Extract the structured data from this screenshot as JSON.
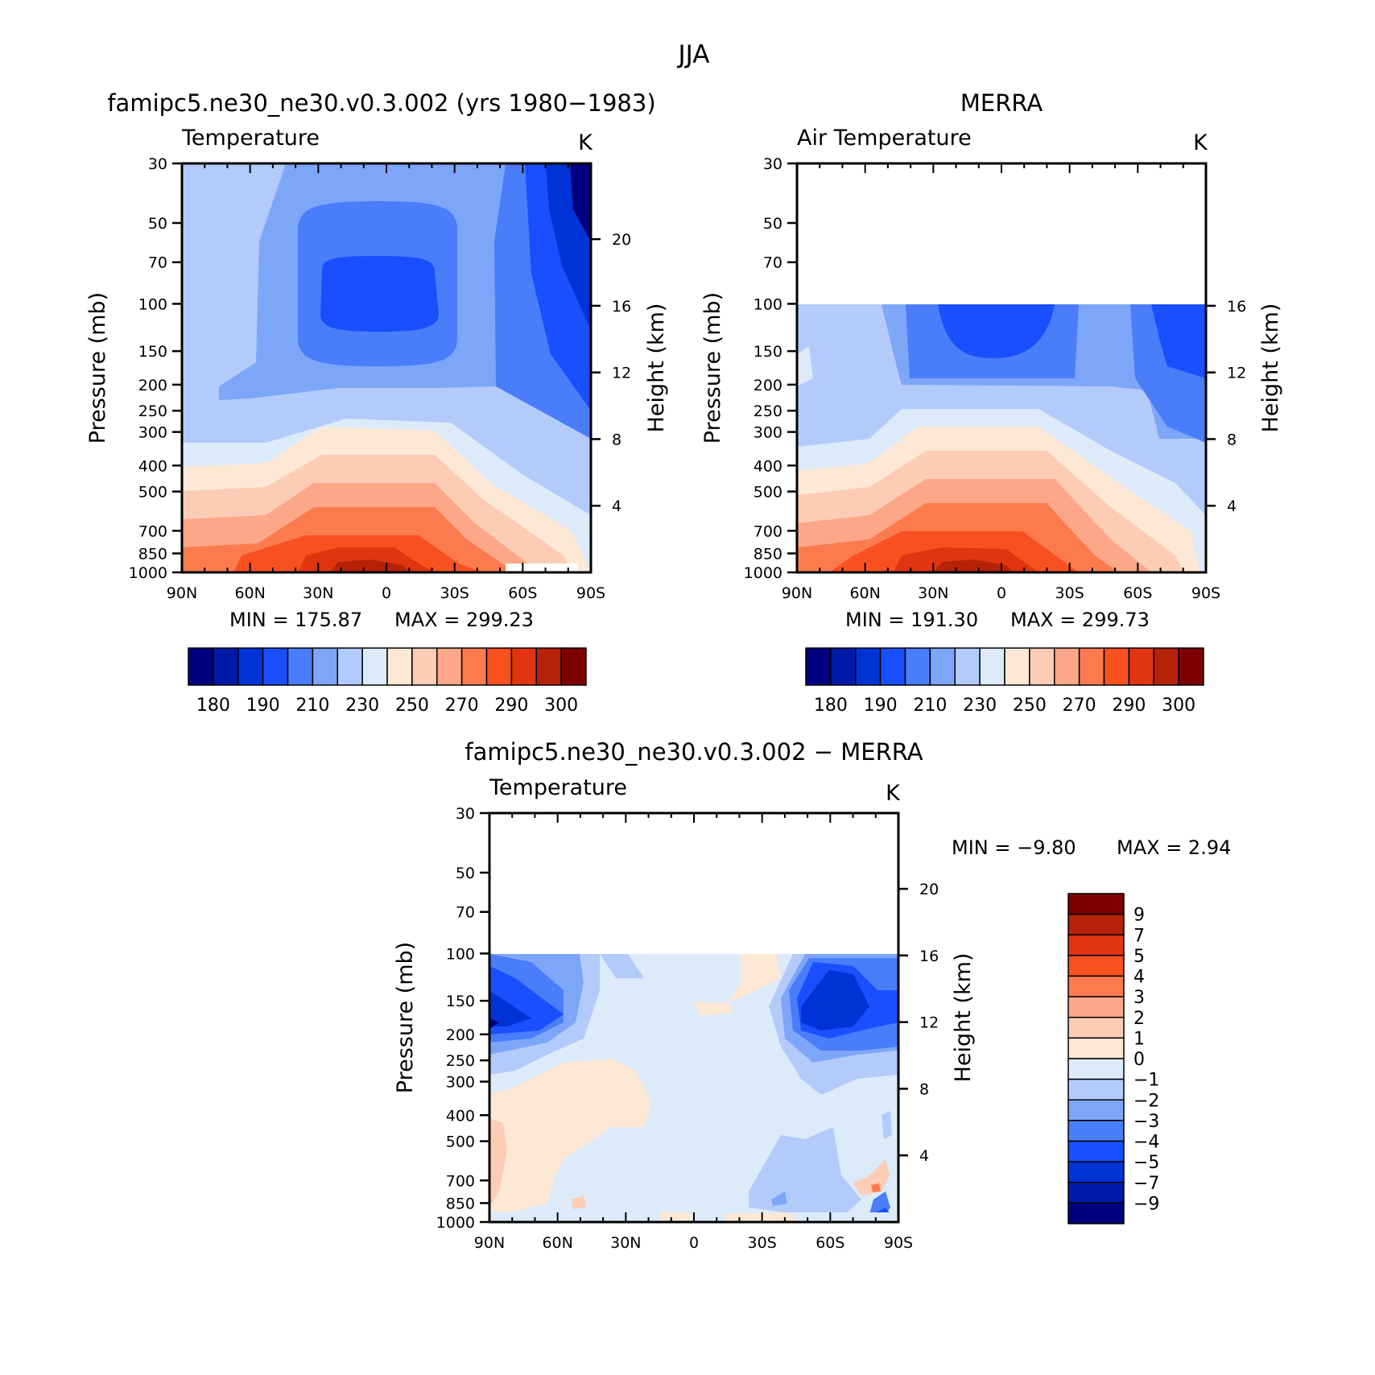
{
  "figure": {
    "title": "JJA"
  },
  "chart_data": [
    {
      "type": "heatmap",
      "title": "famipc5.ne30_ne30.v0.3.002 (yrs 1980−1983)",
      "subtitle": "Temperature",
      "units": "K",
      "ylabel": "Pressure (mb)",
      "ylabel_right": "Height (km)",
      "x_ticks": [
        "90N",
        "60N",
        "30N",
        "0",
        "30S",
        "60S",
        "90S"
      ],
      "x_values": [
        90,
        60,
        30,
        0,
        -30,
        -60,
        -90
      ],
      "y_ticks": [
        30,
        50,
        70,
        100,
        150,
        200,
        250,
        300,
        400,
        500,
        700,
        850,
        1000
      ],
      "height_ticks": [
        20,
        16,
        12,
        8,
        4
      ],
      "ylim": [
        1000,
        30
      ],
      "min_label": "MIN  =  175.87",
      "max_label": "MAX  =  299.23",
      "data_top_mb": 30,
      "min": 175.87,
      "max": 299.23
    },
    {
      "type": "heatmap",
      "title": "MERRA",
      "subtitle": "Air Temperature",
      "units": "K",
      "ylabel": "Pressure (mb)",
      "ylabel_right": "Height (km)",
      "x_ticks": [
        "90N",
        "60N",
        "30N",
        "0",
        "30S",
        "60S",
        "90S"
      ],
      "x_values": [
        90,
        60,
        30,
        0,
        -30,
        -60,
        -90
      ],
      "y_ticks": [
        30,
        50,
        70,
        100,
        150,
        200,
        250,
        300,
        400,
        500,
        700,
        850,
        1000
      ],
      "height_ticks": [
        16,
        12,
        8,
        4
      ],
      "ylim": [
        1000,
        30
      ],
      "min_label": "MIN  =  191.30",
      "max_label": "MAX  =  299.73",
      "data_top_mb": 100,
      "min": 191.3,
      "max": 299.73
    },
    {
      "type": "heatmap",
      "title": "famipc5.ne30_ne30.v0.3.002 − MERRA",
      "subtitle": "Temperature",
      "units": "K",
      "ylabel": "Pressure (mb)",
      "ylabel_right": "Height (km)",
      "x_ticks": [
        "90N",
        "60N",
        "30N",
        "0",
        "30S",
        "60S",
        "90S"
      ],
      "x_values": [
        90,
        60,
        30,
        0,
        -30,
        -60,
        -90
      ],
      "y_ticks": [
        30,
        50,
        70,
        100,
        150,
        200,
        250,
        300,
        400,
        500,
        700,
        850,
        1000
      ],
      "height_ticks": [
        20,
        16,
        12,
        8,
        4
      ],
      "ylim": [
        1000,
        30
      ],
      "min_label": "MIN  =    −9.80",
      "max_label": "MAX  =     2.94",
      "data_top_mb": 100,
      "min": -9.8,
      "max": 2.94
    }
  ],
  "colorbar_abs": {
    "colors": [
      "#000080",
      "#001aa8",
      "#0033d6",
      "#1a4fff",
      "#4a7dfa",
      "#7ea6f8",
      "#b3cbfa",
      "#dceaf9",
      "#fde8d6",
      "#fdccb4",
      "#fca788",
      "#fb7b4f",
      "#f9501f",
      "#e03510",
      "#b52208",
      "#7d0000"
    ],
    "labels": [
      "180",
      "190",
      "210",
      "230",
      "250",
      "270",
      "290",
      "300"
    ]
  },
  "colorbar_diff": {
    "colors": [
      "#7d0000",
      "#b52208",
      "#e03510",
      "#f9501f",
      "#fb7b4f",
      "#fca788",
      "#fdccb4",
      "#fde8d6",
      "#dceaf9",
      "#b3cbfa",
      "#7ea6f8",
      "#4a7dfa",
      "#1a4fff",
      "#0033d6",
      "#001aa8",
      "#000080"
    ],
    "labels": [
      "9",
      "7",
      "5",
      "4",
      "3",
      "2",
      "1",
      "0",
      "−1",
      "−2",
      "−3",
      "−4",
      "−5",
      "−7",
      "−9"
    ]
  }
}
